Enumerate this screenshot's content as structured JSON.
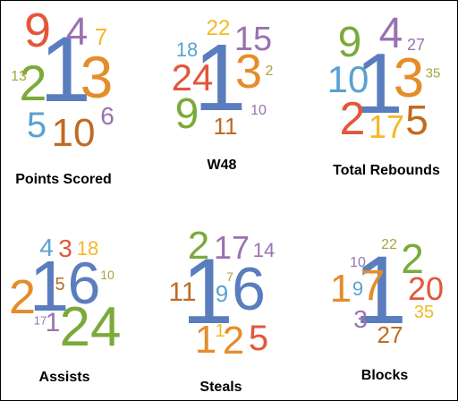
{
  "palette": {
    "blue": "#5a7dbd",
    "orange": "#e58d2a",
    "green": "#7aab3a",
    "red": "#e2573a",
    "purple": "#9a72b0",
    "lightblue": "#5aa1d2",
    "brown": "#c06a22",
    "yellow": "#f3b925",
    "olive": "#a6a63a"
  },
  "chart_data": [
    {
      "type": "word-cloud",
      "title": "Points Scored",
      "words": [
        {
          "text": "1",
          "color": "blue"
        },
        {
          "text": "3",
          "color": "orange"
        },
        {
          "text": "2",
          "color": "green"
        },
        {
          "text": "9",
          "color": "red"
        },
        {
          "text": "4",
          "color": "purple"
        },
        {
          "text": "7",
          "color": "yellow"
        },
        {
          "text": "13",
          "color": "olive"
        },
        {
          "text": "5",
          "color": "lightblue"
        },
        {
          "text": "10",
          "color": "brown"
        },
        {
          "text": "6",
          "color": "purple"
        }
      ]
    },
    {
      "type": "word-cloud",
      "title": "W48",
      "words": [
        {
          "text": "1",
          "color": "blue"
        },
        {
          "text": "3",
          "color": "orange"
        },
        {
          "text": "24",
          "color": "red"
        },
        {
          "text": "15",
          "color": "purple"
        },
        {
          "text": "22",
          "color": "yellow"
        },
        {
          "text": "18",
          "color": "lightblue"
        },
        {
          "text": "2",
          "color": "olive"
        },
        {
          "text": "9",
          "color": "green"
        },
        {
          "text": "11",
          "color": "brown"
        },
        {
          "text": "10",
          "color": "purple"
        }
      ]
    },
    {
      "type": "word-cloud",
      "title": "Total Rebounds",
      "words": [
        {
          "text": "1",
          "color": "blue"
        },
        {
          "text": "3",
          "color": "orange"
        },
        {
          "text": "9",
          "color": "green"
        },
        {
          "text": "4",
          "color": "purple"
        },
        {
          "text": "27",
          "color": "purple"
        },
        {
          "text": "10",
          "color": "lightblue"
        },
        {
          "text": "35",
          "color": "olive"
        },
        {
          "text": "2",
          "color": "red"
        },
        {
          "text": "17",
          "color": "yellow"
        },
        {
          "text": "5",
          "color": "brown"
        }
      ]
    },
    {
      "type": "word-cloud",
      "title": "Assists",
      "words": [
        {
          "text": "1",
          "color": "blue"
        },
        {
          "text": "6",
          "color": "blue"
        },
        {
          "text": "2",
          "color": "orange"
        },
        {
          "text": "4",
          "color": "lightblue"
        },
        {
          "text": "3",
          "color": "red"
        },
        {
          "text": "18",
          "color": "yellow"
        },
        {
          "text": "5",
          "color": "brown"
        },
        {
          "text": "10",
          "color": "olive"
        },
        {
          "text": "17",
          "color": "purple"
        },
        {
          "text": "1",
          "color": "purple"
        },
        {
          "text": "24",
          "color": "green"
        }
      ]
    },
    {
      "type": "word-cloud",
      "title": "Steals",
      "words": [
        {
          "text": "1",
          "color": "blue"
        },
        {
          "text": "6",
          "color": "blue"
        },
        {
          "text": "2",
          "color": "green"
        },
        {
          "text": "17",
          "color": "purple"
        },
        {
          "text": "14",
          "color": "purple"
        },
        {
          "text": "11",
          "color": "brown"
        },
        {
          "text": "7",
          "color": "olive"
        },
        {
          "text": "9",
          "color": "lightblue"
        },
        {
          "text": "1",
          "color": "orange"
        },
        {
          "text": "1",
          "color": "yellow"
        },
        {
          "text": "2",
          "color": "orange"
        },
        {
          "text": "5",
          "color": "red"
        }
      ]
    },
    {
      "type": "word-cloud",
      "title": "Blocks",
      "words": [
        {
          "text": "1",
          "color": "blue"
        },
        {
          "text": "2",
          "color": "green"
        },
        {
          "text": "22",
          "color": "olive"
        },
        {
          "text": "10",
          "color": "purple"
        },
        {
          "text": "1",
          "color": "orange"
        },
        {
          "text": "9",
          "color": "lightblue"
        },
        {
          "text": "7",
          "color": "orange"
        },
        {
          "text": "20",
          "color": "red"
        },
        {
          "text": "35",
          "color": "yellow"
        },
        {
          "text": "3",
          "color": "purple"
        },
        {
          "text": "27",
          "color": "brown"
        }
      ]
    }
  ]
}
